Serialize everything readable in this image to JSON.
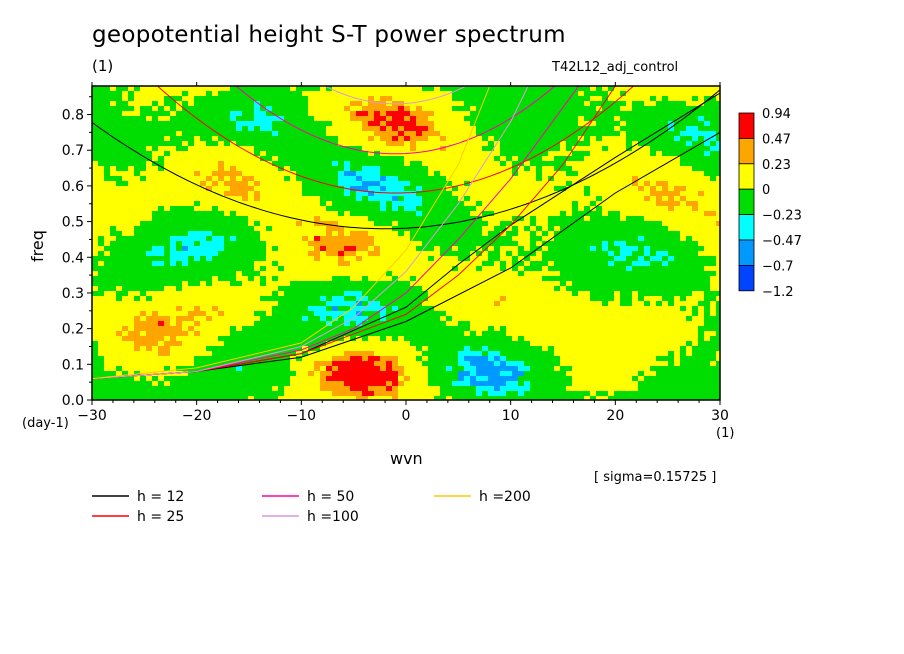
{
  "title": "geopotential height S-T power spectrum",
  "title_unit": "(1)",
  "run_name": "T42L12_adj_control",
  "sigma_note": "[ sigma=0.15725 ]",
  "chart_data": {
    "type": "heatmap",
    "xlabel": "wvn",
    "ylabel": "freq",
    "x_unit": "(1)",
    "y_unit": "(day-1)",
    "xlim": [
      -30,
      30
    ],
    "ylim": [
      0,
      0.88
    ],
    "x_ticks": [
      "−30",
      "−20",
      "−10",
      "0",
      "10",
      "20",
      "30"
    ],
    "x_tick_values": [
      -30,
      -20,
      -10,
      0,
      10,
      20,
      30
    ],
    "y_ticks": [
      "0.0",
      "0.1",
      "0.2",
      "0.3",
      "0.4",
      "0.5",
      "0.6",
      "0.7",
      "0.8"
    ],
    "y_tick_values": [
      0,
      0.1,
      0.2,
      0.3,
      0.4,
      0.5,
      0.6,
      0.7,
      0.8
    ],
    "colorbar": {
      "labels": [
        "0.94",
        "0.47",
        "0.23",
        "0",
        "−0.23",
        "−0.47",
        "−0.7",
        "−1.2"
      ],
      "colors": [
        "#ff0000",
        "#ffa500",
        "#ffff00",
        "#00dd00",
        "#00ffff",
        "#0099ff",
        "#0044ff"
      ]
    },
    "field_note": "noisy field, mostly between −0.23 and 0.23",
    "curves": [
      {
        "label": "h = 12",
        "h": 12,
        "color": "#000000",
        "ridges": [
          {
            "type": "parabola",
            "x0": -2,
            "y0": 0.48,
            "k": 0.00038
          },
          {
            "type": "rising",
            "points": [
              [
                -30,
                0.06
              ],
              [
                -20,
                0.08
              ],
              [
                -10,
                0.12
              ],
              [
                0,
                0.22
              ],
              [
                10,
                0.37
              ],
              [
                20,
                0.58
              ],
              [
                30,
                0.75
              ]
            ]
          },
          {
            "type": "rising",
            "points": [
              [
                -30,
                0.06
              ],
              [
                -20,
                0.08
              ],
              [
                -10,
                0.13
              ],
              [
                0,
                0.26
              ],
              [
                5,
                0.38
              ],
              [
                10,
                0.49
              ],
              [
                20,
                0.68
              ],
              [
                30,
                0.86
              ]
            ]
          }
        ]
      },
      {
        "label": "h = 25",
        "h": 25,
        "color": "#ff0000",
        "ridges": [
          {
            "type": "parabola",
            "x0": -1,
            "y0": 0.58,
            "k": 0.00058
          },
          {
            "type": "rising",
            "points": [
              [
                -30,
                0.06
              ],
              [
                -20,
                0.08
              ],
              [
                -10,
                0.13
              ],
              [
                0,
                0.24
              ],
              [
                5,
                0.35
              ],
              [
                10,
                0.49
              ],
              [
                15,
                0.66
              ],
              [
                20,
                0.88
              ]
            ]
          }
        ]
      },
      {
        "label": "h = 50",
        "h": 50,
        "color": "#ff00aa",
        "ridges": [
          {
            "type": "parabola",
            "x0": -1,
            "y0": 0.69,
            "k": 0.00082
          },
          {
            "type": "rising",
            "points": [
              [
                -30,
                0.06
              ],
              [
                -20,
                0.08
              ],
              [
                -10,
                0.14
              ],
              [
                -5,
                0.2
              ],
              [
                0,
                0.3
              ],
              [
                5,
                0.45
              ],
              [
                10,
                0.62
              ],
              [
                15,
                0.82
              ],
              [
                17,
                0.9
              ]
            ]
          }
        ]
      },
      {
        "label": "h =100",
        "h": 100,
        "color": "#dd99dd",
        "ridges": [
          {
            "type": "parabola",
            "x0": -1,
            "y0": 0.83,
            "k": 0.0011
          },
          {
            "type": "rising",
            "points": [
              [
                -30,
                0.06
              ],
              [
                -20,
                0.08
              ],
              [
                -10,
                0.15
              ],
              [
                -5,
                0.23
              ],
              [
                0,
                0.36
              ],
              [
                5,
                0.55
              ],
              [
                10,
                0.78
              ],
              [
                12,
                0.9
              ]
            ]
          }
        ]
      },
      {
        "label": "h =200",
        "h": 200,
        "color": "#ffcc00",
        "ridges": [
          {
            "type": "rising",
            "points": [
              [
                -30,
                0.06
              ],
              [
                -20,
                0.09
              ],
              [
                -10,
                0.16
              ],
              [
                -5,
                0.26
              ],
              [
                0,
                0.42
              ],
              [
                5,
                0.66
              ],
              [
                8,
                0.88
              ]
            ]
          }
        ]
      }
    ]
  }
}
